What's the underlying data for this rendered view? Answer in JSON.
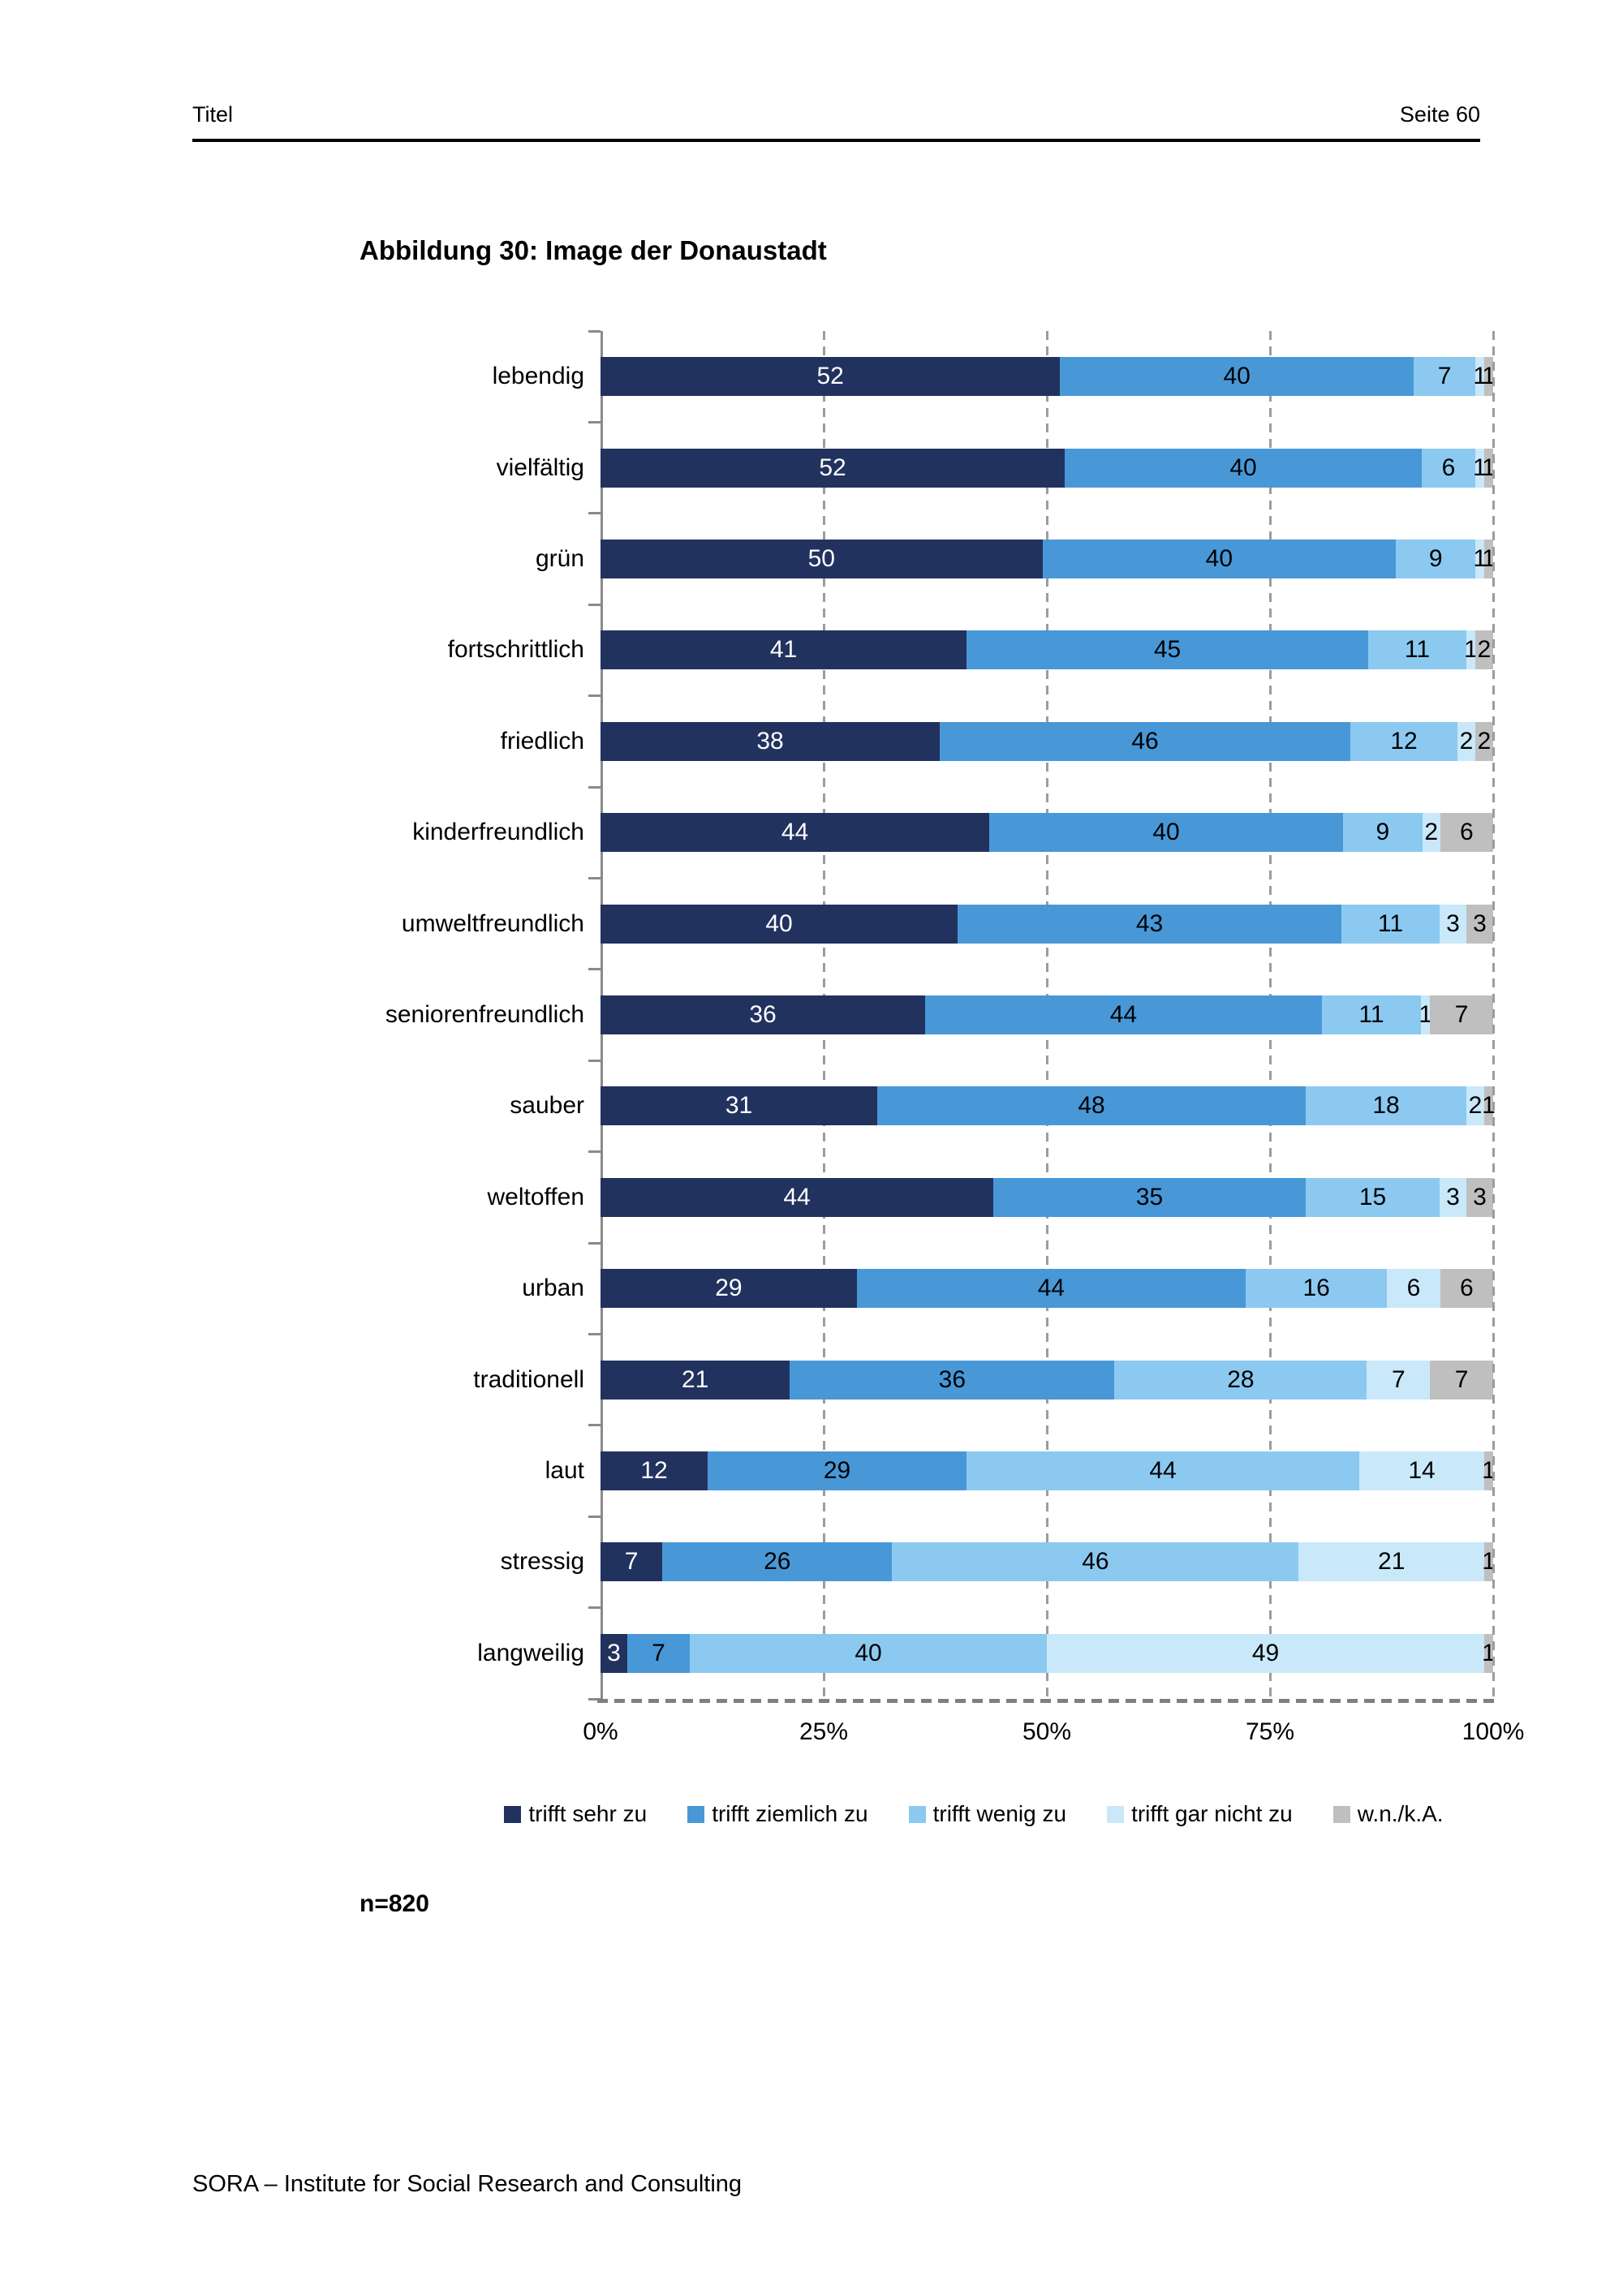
{
  "header": {
    "left": "Titel",
    "right": "Seite 60"
  },
  "title": "Abbildung 30: Image der Donaustadt",
  "sample_note": "n=820",
  "footer": "SORA – Institute for Social Research and Consulting",
  "chart_data": {
    "type": "bar",
    "orientation": "horizontal",
    "stacked": true,
    "normalized_to_100": true,
    "title": "Abbildung 30: Image der Donaustadt",
    "categories": [
      "lebendig",
      "vielfältig",
      "grün",
      "fortschrittlich",
      "friedlich",
      "kinderfreundlich",
      "umweltfreundlich",
      "seniorenfreundlich",
      "sauber",
      "weltoffen",
      "urban",
      "traditionell",
      "laut",
      "stressig",
      "langweilig"
    ],
    "series": [
      {
        "name": "trifft sehr zu",
        "color": "#22325F",
        "values": [
          52,
          52,
          50,
          41,
          38,
          44,
          40,
          36,
          31,
          44,
          29,
          21,
          12,
          7,
          3
        ]
      },
      {
        "name": "trifft ziemlich zu",
        "color": "#4898D8",
        "values": [
          40,
          40,
          40,
          45,
          46,
          40,
          43,
          44,
          48,
          35,
          44,
          36,
          29,
          26,
          7
        ]
      },
      {
        "name": "trifft wenig zu",
        "color": "#8CC9F0",
        "values": [
          7,
          6,
          9,
          11,
          12,
          9,
          11,
          11,
          18,
          15,
          16,
          28,
          44,
          46,
          40
        ]
      },
      {
        "name": "trifft gar nicht zu",
        "color": "#C9E8FA",
        "values": [
          1,
          1,
          1,
          1,
          2,
          2,
          3,
          1,
          2,
          3,
          6,
          7,
          14,
          21,
          49
        ]
      },
      {
        "name": "w.n./k.A.",
        "color": "#BFBFBF",
        "values": [
          1,
          1,
          1,
          2,
          2,
          6,
          3,
          7,
          1,
          3,
          6,
          7,
          1,
          1,
          1
        ]
      }
    ],
    "x_ticks": [
      "0%",
      "25%",
      "50%",
      "75%",
      "100%"
    ],
    "xlim": [
      0,
      100
    ],
    "grid": "vertical-dashed",
    "legend_position": "bottom",
    "value_label_color_on_first_series": "#FFFFFF",
    "value_label_color_default": "#000000"
  }
}
